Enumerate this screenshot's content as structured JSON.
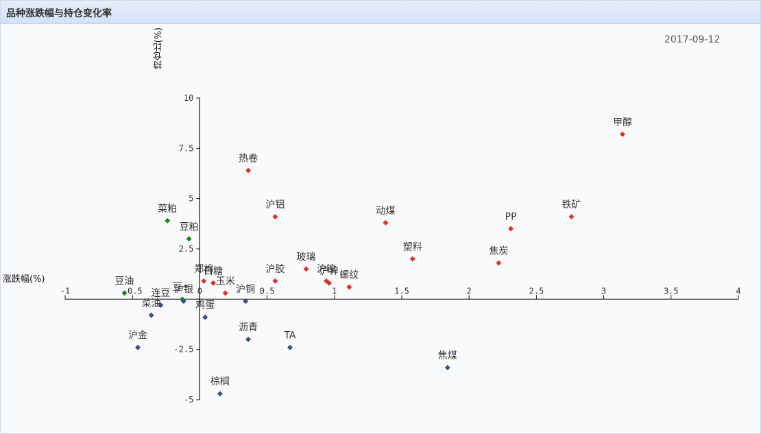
{
  "panel": {
    "title": "品种涨跌幅与持仓变化率"
  },
  "date": "2017-09-12",
  "chart_data": {
    "type": "scatter",
    "xlabel": "涨跌幅(%)",
    "ylabel": "持仓比(%)",
    "xlim": [
      -1,
      4
    ],
    "ylim": [
      -5,
      10
    ],
    "xticks": [
      -1,
      -0.5,
      0,
      0.5,
      1,
      1.5,
      2,
      2.5,
      3,
      3.5,
      4
    ],
    "xtick_labels": [
      "-1",
      "-0.5",
      "0",
      "0.5",
      "1",
      "1.5",
      "2",
      "2.5",
      "3",
      "3.5",
      "4"
    ],
    "yticks": [
      -5,
      -2.5,
      0,
      2.5,
      5,
      7.5,
      10
    ],
    "ytick_labels": [
      "-5",
      "-2.5",
      "",
      "2.5",
      "5",
      "7.5",
      "10"
    ],
    "colors": {
      "red": "#e0321e",
      "green": "#168a16",
      "blue": "#34508f"
    },
    "points": [
      {
        "name": "甲醇",
        "x": 3.14,
        "y": 8.2,
        "color": "red"
      },
      {
        "name": "热卷",
        "x": 0.36,
        "y": 6.4,
        "color": "red"
      },
      {
        "name": "铁矿",
        "x": 2.76,
        "y": 4.1,
        "color": "red"
      },
      {
        "name": "沪铝",
        "x": 0.56,
        "y": 4.1,
        "color": "red"
      },
      {
        "name": "动煤",
        "x": 1.38,
        "y": 3.8,
        "color": "red"
      },
      {
        "name": "PP",
        "x": 2.31,
        "y": 3.5,
        "color": "red"
      },
      {
        "name": "塑料",
        "x": 1.58,
        "y": 2.0,
        "color": "red"
      },
      {
        "name": "焦炭",
        "x": 2.22,
        "y": 1.8,
        "color": "red"
      },
      {
        "name": "玻璃",
        "x": 0.79,
        "y": 1.5,
        "color": "red"
      },
      {
        "name": "沪胶",
        "x": 0.56,
        "y": 0.9,
        "color": "red"
      },
      {
        "name": "沪镍",
        "x": 0.94,
        "y": 0.9,
        "color": "red"
      },
      {
        "name": "沪锌",
        "x": 0.96,
        "y": 0.8,
        "color": "red"
      },
      {
        "name": "螺纹",
        "x": 1.11,
        "y": 0.6,
        "color": "red"
      },
      {
        "name": "郑棉",
        "x": 0.03,
        "y": 0.9,
        "color": "red"
      },
      {
        "name": "白糖",
        "x": 0.1,
        "y": 0.8,
        "color": "red"
      },
      {
        "name": "玉米",
        "x": 0.19,
        "y": 0.3,
        "color": "red"
      },
      {
        "name": "菜粕",
        "x": -0.24,
        "y": 3.9,
        "color": "green"
      },
      {
        "name": "豆粕",
        "x": -0.08,
        "y": 3.0,
        "color": "green"
      },
      {
        "name": "豆油",
        "x": -0.56,
        "y": 0.3,
        "color": "green"
      },
      {
        "name": "豆一",
        "x": -0.13,
        "y": 0.0,
        "color": "green"
      },
      {
        "name": "沪铜",
        "x": 0.34,
        "y": -0.1,
        "color": "blue"
      },
      {
        "name": "沪银",
        "x": -0.12,
        "y": -0.1,
        "color": "blue"
      },
      {
        "name": "连豆",
        "x": -0.29,
        "y": -0.3,
        "color": "blue"
      },
      {
        "name": "菜油",
        "x": -0.36,
        "y": -0.8,
        "color": "blue"
      },
      {
        "name": "鸡蛋",
        "x": 0.04,
        "y": -0.9,
        "color": "blue"
      },
      {
        "name": "沥青",
        "x": 0.36,
        "y": -2.0,
        "color": "blue"
      },
      {
        "name": "TA",
        "x": 0.67,
        "y": -2.4,
        "color": "blue"
      },
      {
        "name": "沪金",
        "x": -0.46,
        "y": -2.4,
        "color": "blue"
      },
      {
        "name": "焦煤",
        "x": 1.84,
        "y": -3.4,
        "color": "blue"
      },
      {
        "name": "棕榈",
        "x": 0.15,
        "y": -4.7,
        "color": "blue"
      }
    ]
  }
}
